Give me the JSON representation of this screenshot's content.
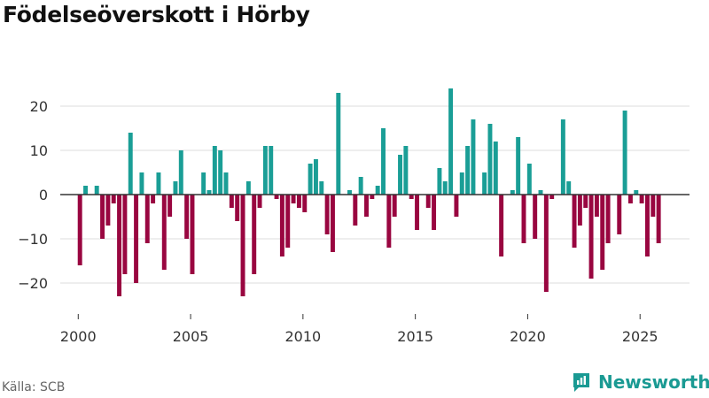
{
  "title": "Födelseöverskott i Hörby",
  "source": "Källa: SCB",
  "brand": {
    "name": "Newsworthy",
    "icon": "chart-logo-icon"
  },
  "colors": {
    "positive": "#1a9e96",
    "negative": "#990640",
    "grid": "#dddddd",
    "zero": "#333333",
    "brand": "#1a9a93"
  },
  "chart_data": {
    "type": "bar",
    "title": "Födelseöverskott i Hörby",
    "xlabel": "",
    "ylabel": "",
    "frequency": "quarterly",
    "start_quarter": "2000-Q1",
    "xlim": [
      1999.2,
      2027.2
    ],
    "ylim": [
      -27,
      27
    ],
    "xticks": [
      2000,
      2005,
      2010,
      2015,
      2020,
      2025
    ],
    "xtick_labels": [
      "2000",
      "2005",
      "2010",
      "2015",
      "2020",
      "2025"
    ],
    "yticks": [
      -20,
      -10,
      0,
      10,
      20
    ],
    "ytick_labels": [
      "−20",
      "−10",
      "0",
      "10",
      "20"
    ],
    "grid": true,
    "legend": "none",
    "values": [
      -16,
      2,
      0,
      2,
      -10,
      -7,
      -2,
      -23,
      -18,
      14,
      -20,
      5,
      -11,
      -2,
      5,
      -17,
      -5,
      3,
      10,
      -10,
      -18,
      0,
      5,
      1,
      11,
      10,
      5,
      -3,
      -6,
      -23,
      3,
      -18,
      -3,
      11,
      11,
      -1,
      -14,
      -12,
      -2,
      -3,
      -4,
      7,
      8,
      3,
      -9,
      -13,
      23,
      0,
      1,
      -7,
      4,
      -5,
      -1,
      2,
      15,
      -12,
      -5,
      9,
      11,
      -1,
      -8,
      0,
      -3,
      -8,
      6,
      3,
      24,
      -5,
      5,
      11,
      17,
      0,
      5,
      16,
      12,
      -14,
      0,
      1,
      13,
      -11,
      7,
      -10,
      1,
      -22,
      -1,
      0,
      17,
      3,
      -12,
      -7,
      -3,
      -19,
      -5,
      -17,
      -11,
      0,
      -9,
      19,
      -2,
      1,
      -2,
      -14,
      -5,
      -11
    ]
  }
}
